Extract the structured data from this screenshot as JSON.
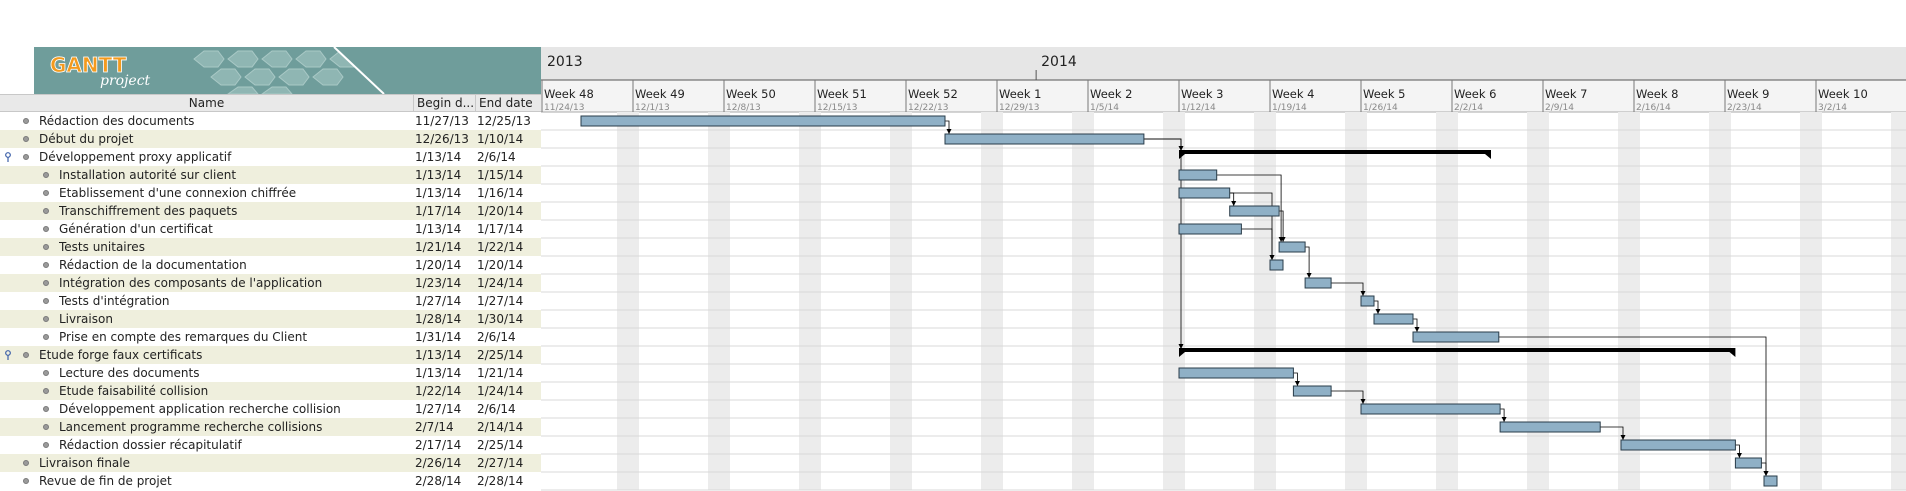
{
  "logo": {
    "wordmark_top": "GANTT",
    "wordmark_bottom": "project"
  },
  "columns": {
    "name": "Name",
    "begin": "Begin d...",
    "end": "End date"
  },
  "timeline": {
    "years": [
      {
        "label": "2013",
        "week_index": 0
      },
      {
        "label": "2014",
        "week_index": 5.43
      }
    ],
    "weeks": [
      {
        "label": "Week 48",
        "date": "11/24/13"
      },
      {
        "label": "Week 49",
        "date": "12/1/13"
      },
      {
        "label": "Week 50",
        "date": "12/8/13"
      },
      {
        "label": "Week 51",
        "date": "12/15/13"
      },
      {
        "label": "Week 52",
        "date": "12/22/13"
      },
      {
        "label": "Week 1",
        "date": "12/29/13"
      },
      {
        "label": "Week 2",
        "date": "1/5/14"
      },
      {
        "label": "Week 3",
        "date": "1/12/14"
      },
      {
        "label": "Week 4",
        "date": "1/19/14"
      },
      {
        "label": "Week 5",
        "date": "1/26/14"
      },
      {
        "label": "Week 6",
        "date": "2/2/14"
      },
      {
        "label": "Week 7",
        "date": "2/9/14"
      },
      {
        "label": "Week 8",
        "date": "2/16/14"
      },
      {
        "label": "Week 9",
        "date": "2/23/14"
      },
      {
        "label": "Week 10",
        "date": "3/2/14"
      }
    ]
  },
  "tasks": [
    {
      "name": "Rédaction des documents",
      "begin": "11/27/13",
      "end": "12/25/13",
      "level": 0,
      "type": "task",
      "start_day": 3,
      "end_day": 31
    },
    {
      "name": "Début du projet",
      "begin": "12/26/13",
      "end": "1/10/14",
      "level": 0,
      "type": "task",
      "start_day": 31,
      "end_day": 46.3
    },
    {
      "name": "Développement proxy applicatif",
      "begin": "1/13/14",
      "end": "2/6/14",
      "level": 0,
      "type": "summary",
      "start_day": 49,
      "end_day": 73
    },
    {
      "name": "Installation autorité sur client",
      "begin": "1/13/14",
      "end": "1/15/14",
      "level": 1,
      "type": "task",
      "start_day": 49,
      "end_day": 51.9
    },
    {
      "name": "Etablissement d'une connexion chiffrée",
      "begin": "1/13/14",
      "end": "1/16/14",
      "level": 1,
      "type": "task",
      "start_day": 49,
      "end_day": 52.9
    },
    {
      "name": "Transchiffrement des paquets",
      "begin": "1/17/14",
      "end": "1/20/14",
      "level": 1,
      "type": "task",
      "start_day": 52.9,
      "end_day": 56.7
    },
    {
      "name": "Génération d'un certificat",
      "begin": "1/13/14",
      "end": "1/17/14",
      "level": 1,
      "type": "task",
      "start_day": 49,
      "end_day": 53.8
    },
    {
      "name": "Tests unitaires",
      "begin": "1/21/14",
      "end": "1/22/14",
      "level": 1,
      "type": "task",
      "start_day": 56.7,
      "end_day": 58.7
    },
    {
      "name": "Rédaction de la documentation",
      "begin": "1/20/14",
      "end": "1/20/14",
      "level": 1,
      "type": "task",
      "start_day": 56,
      "end_day": 57
    },
    {
      "name": "Intégration des composants de l'application",
      "begin": "1/23/14",
      "end": "1/24/14",
      "level": 1,
      "type": "task",
      "start_day": 58.7,
      "end_day": 60.7
    },
    {
      "name": "Tests d'intégration",
      "begin": "1/27/14",
      "end": "1/27/14",
      "level": 1,
      "type": "task",
      "start_day": 63,
      "end_day": 64
    },
    {
      "name": "Livraison",
      "begin": "1/28/14",
      "end": "1/30/14",
      "level": 1,
      "type": "task",
      "start_day": 64,
      "end_day": 67
    },
    {
      "name": "Prise en compte des remarques du Client",
      "begin": "1/31/14",
      "end": "2/6/14",
      "level": 1,
      "type": "task",
      "start_day": 67,
      "end_day": 73.6
    },
    {
      "name": "Etude forge faux certificats",
      "begin": "1/13/14",
      "end": "2/25/14",
      "level": 0,
      "type": "summary",
      "start_day": 49,
      "end_day": 91.8
    },
    {
      "name": "Lecture des documents",
      "begin": "1/13/14",
      "end": "1/21/14",
      "level": 1,
      "type": "task",
      "start_day": 49,
      "end_day": 57.8
    },
    {
      "name": "Etude faisabilité collision",
      "begin": "1/22/14",
      "end": "1/24/14",
      "level": 1,
      "type": "task",
      "start_day": 57.8,
      "end_day": 60.7
    },
    {
      "name": "Développement application recherche collision",
      "begin": "1/27/14",
      "end": "2/6/14",
      "level": 1,
      "type": "task",
      "start_day": 63,
      "end_day": 73.7
    },
    {
      "name": "Lancement programme recherche collisions",
      "begin": "2/7/14",
      "end": "2/14/14",
      "level": 1,
      "type": "task",
      "start_day": 73.7,
      "end_day": 81.4
    },
    {
      "name": "Rédaction dossier récapitulatif",
      "begin": "2/17/14",
      "end": "2/25/14",
      "level": 1,
      "type": "task",
      "start_day": 83,
      "end_day": 91.8
    },
    {
      "name": "Livraison finale",
      "begin": "2/26/14",
      "end": "2/27/14",
      "level": 0,
      "type": "task",
      "start_day": 91.8,
      "end_day": 93.8
    },
    {
      "name": "Revue de fin de projet",
      "begin": "2/28/14",
      "end": "2/28/14",
      "level": 0,
      "type": "task",
      "start_day": 94,
      "end_day": 95
    }
  ],
  "dependencies": [
    {
      "from": 0,
      "to": 1
    },
    {
      "from": 1,
      "to": 2
    },
    {
      "from": 3,
      "to": 7
    },
    {
      "from": 4,
      "to": 5
    },
    {
      "from": 4,
      "to": 8
    },
    {
      "from": 5,
      "to": 7
    },
    {
      "from": 6,
      "to": 8
    },
    {
      "from": 7,
      "to": 9
    },
    {
      "from": 9,
      "to": 10
    },
    {
      "from": 10,
      "to": 11
    },
    {
      "from": 11,
      "to": 12
    },
    {
      "from": 12,
      "to": 20
    },
    {
      "from": 14,
      "to": 15
    },
    {
      "from": 15,
      "to": 16
    },
    {
      "from": 16,
      "to": 17
    },
    {
      "from": 17,
      "to": 18
    },
    {
      "from": 18,
      "to": 19
    },
    {
      "from": 19,
      "to": 20
    },
    {
      "from": 1,
      "to": 13
    }
  ],
  "colors": {
    "bar_fill": "#8fb0c6",
    "bar_stroke": "#2a3d4a",
    "summary": "#000000",
    "weekend": "#ececec",
    "row_alt": "#efefdd",
    "logo_bg": "#6f9d9b"
  }
}
